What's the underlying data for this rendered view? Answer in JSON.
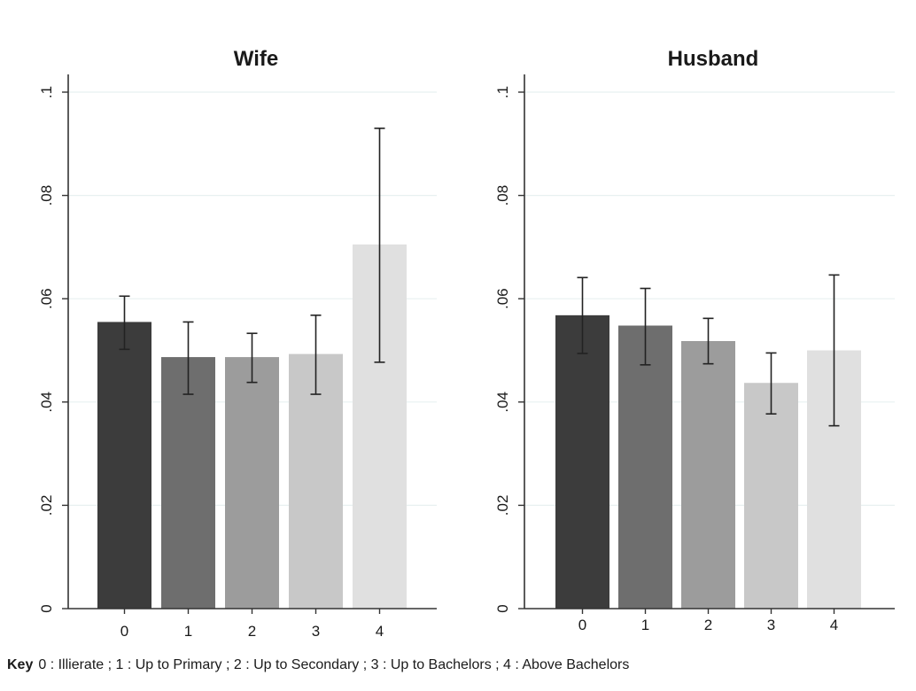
{
  "chart_data": [
    {
      "type": "bar",
      "title": "Wife",
      "xlabel": "",
      "ylabel": "",
      "categories": [
        "0",
        "1",
        "2",
        "3",
        "4"
      ],
      "values": [
        0.0555,
        0.0487,
        0.0487,
        0.0493,
        0.0705
      ],
      "error_low": [
        0.0502,
        0.0415,
        0.0438,
        0.0415,
        0.0477
      ],
      "error_high": [
        0.0605,
        0.0555,
        0.0533,
        0.0568,
        0.093
      ],
      "ylim": [
        0,
        0.1
      ],
      "yticks": [
        0,
        0.02,
        0.04,
        0.06,
        0.08,
        0.1
      ],
      "ytick_labels": [
        "0",
        ".02",
        ".04",
        ".06",
        ".08",
        ".1"
      ],
      "bar_colors": [
        "#3c3c3c",
        "#6e6e6e",
        "#9c9c9c",
        "#c8c8c8",
        "#e0e0e0"
      ],
      "grid": true
    },
    {
      "type": "bar",
      "title": "Husband",
      "xlabel": "",
      "ylabel": "",
      "categories": [
        "0",
        "1",
        "2",
        "3",
        "4"
      ],
      "values": [
        0.0568,
        0.0548,
        0.0518,
        0.0437,
        0.05
      ],
      "error_low": [
        0.0494,
        0.0472,
        0.0474,
        0.0377,
        0.0354
      ],
      "error_high": [
        0.0641,
        0.062,
        0.0562,
        0.0495,
        0.0646
      ],
      "ylim": [
        0,
        0.1
      ],
      "yticks": [
        0,
        0.02,
        0.04,
        0.06,
        0.08,
        0.1
      ],
      "ytick_labels": [
        "0",
        ".02",
        ".04",
        ".06",
        ".08",
        ".1"
      ],
      "bar_colors": [
        "#3c3c3c",
        "#6e6e6e",
        "#9c9c9c",
        "#c8c8c8",
        "#e0e0e0"
      ],
      "grid": true
    }
  ],
  "key": {
    "label": "Key",
    "text": "0 : Illierate ; 1 : Up to Primary ; 2 : Up to Secondary ; 3 : Up to Bachelors ; 4 : Above Bachelors"
  },
  "colors": {
    "gridline": "#e8f0f0",
    "axis": "#333333",
    "error_bar": "#222222"
  }
}
